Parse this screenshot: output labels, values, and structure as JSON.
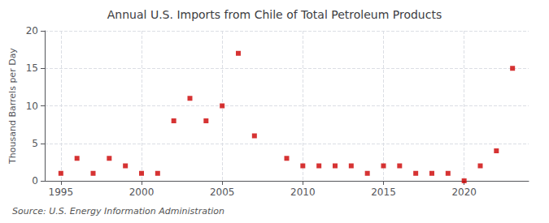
{
  "chart_data": {
    "type": "scatter",
    "title": "Annual U.S. Imports from Chile of Total Petroleum Products",
    "ylabel": "Thousand Barrels per Day",
    "source": "Source: U.S. Energy Information Administration",
    "x": [
      1995,
      1996,
      1997,
      1998,
      1999,
      2000,
      2001,
      2002,
      2003,
      2004,
      2005,
      2006,
      2007,
      2009,
      2010,
      2011,
      2012,
      2013,
      2014,
      2015,
      2016,
      2017,
      2018,
      2019,
      2020,
      2021,
      2022,
      2023
    ],
    "values": [
      1,
      3,
      1,
      3,
      2,
      1,
      1,
      8,
      11,
      8,
      10,
      17,
      6,
      3,
      2,
      2,
      2,
      2,
      1,
      2,
      2,
      1,
      1,
      1,
      0,
      2,
      4,
      15
    ],
    "color": "#cc0000",
    "marker": "square",
    "xlim": [
      1994,
      2024
    ],
    "ylim": [
      0,
      20
    ],
    "xticks": [
      1995,
      2000,
      2005,
      2010,
      2015,
      2020
    ],
    "yticks": [
      0,
      5,
      10,
      15,
      20
    ],
    "grid": true
  }
}
